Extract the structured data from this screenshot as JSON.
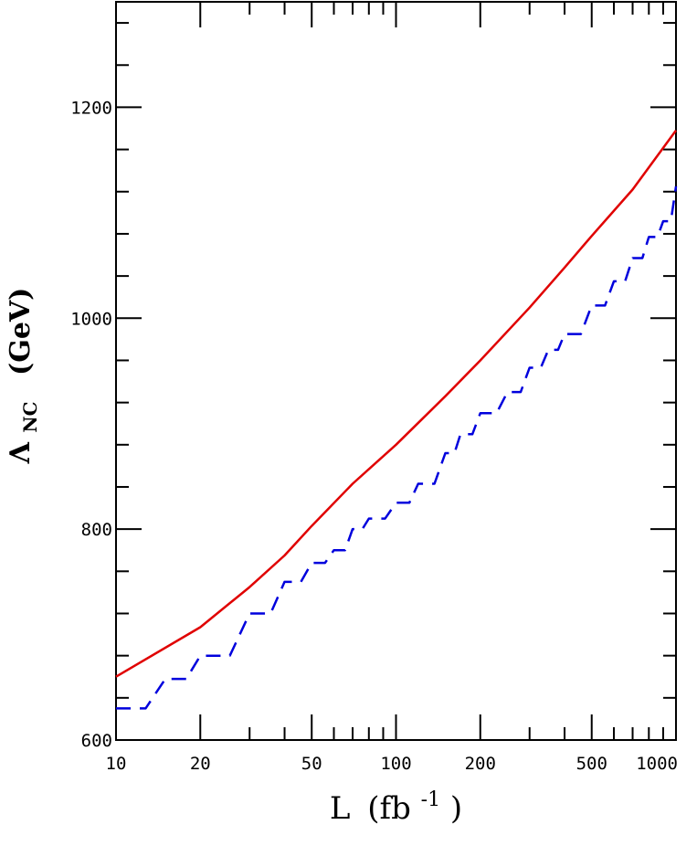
{
  "chart_data": {
    "type": "line",
    "title": "",
    "xlabel": "L",
    "xlabel_unit": "(fb",
    "xlabel_exp": "-1",
    "xlabel_close": ")",
    "ylabel_symbol": "Λ",
    "ylabel_sub": "NC",
    "ylabel_unit": "(GeV)",
    "xscale": "log",
    "xlim": [
      10,
      1000
    ],
    "ylim": [
      600,
      1300
    ],
    "xticks": [
      10,
      20,
      50,
      100,
      200,
      500,
      1000
    ],
    "xtick_labels": [
      "10",
      "20",
      "50",
      "100",
      "200",
      "500",
      "1000"
    ],
    "yticks": [
      600,
      800,
      1000,
      1200
    ],
    "ytick_labels": [
      "600",
      "800",
      "1000",
      "1200"
    ],
    "grid": false,
    "legend": "none",
    "series": [
      {
        "style": "solid",
        "color": "#e00000",
        "x": [
          10,
          20,
          30,
          40,
          50,
          70,
          100,
          150,
          200,
          300,
          400,
          500,
          700,
          1000
        ],
        "y": [
          660,
          707,
          745,
          775,
          803,
          843,
          880,
          926,
          960,
          1010,
          1048,
          1078,
          1122,
          1178
        ]
      },
      {
        "style": "dashed",
        "color": "#0000dd",
        "x": [
          10,
          15,
          20,
          30,
          40,
          50,
          60,
          70,
          80,
          100,
          120,
          150,
          170,
          200,
          250,
          300,
          350,
          400,
          500,
          600,
          700,
          800,
          900,
          1000
        ],
        "y": [
          630,
          658,
          680,
          720,
          750,
          768,
          780,
          800,
          810,
          825,
          843,
          872,
          890,
          910,
          930,
          953,
          970,
          985,
          1012,
          1035,
          1057,
          1077,
          1092,
          1125
        ]
      }
    ]
  }
}
